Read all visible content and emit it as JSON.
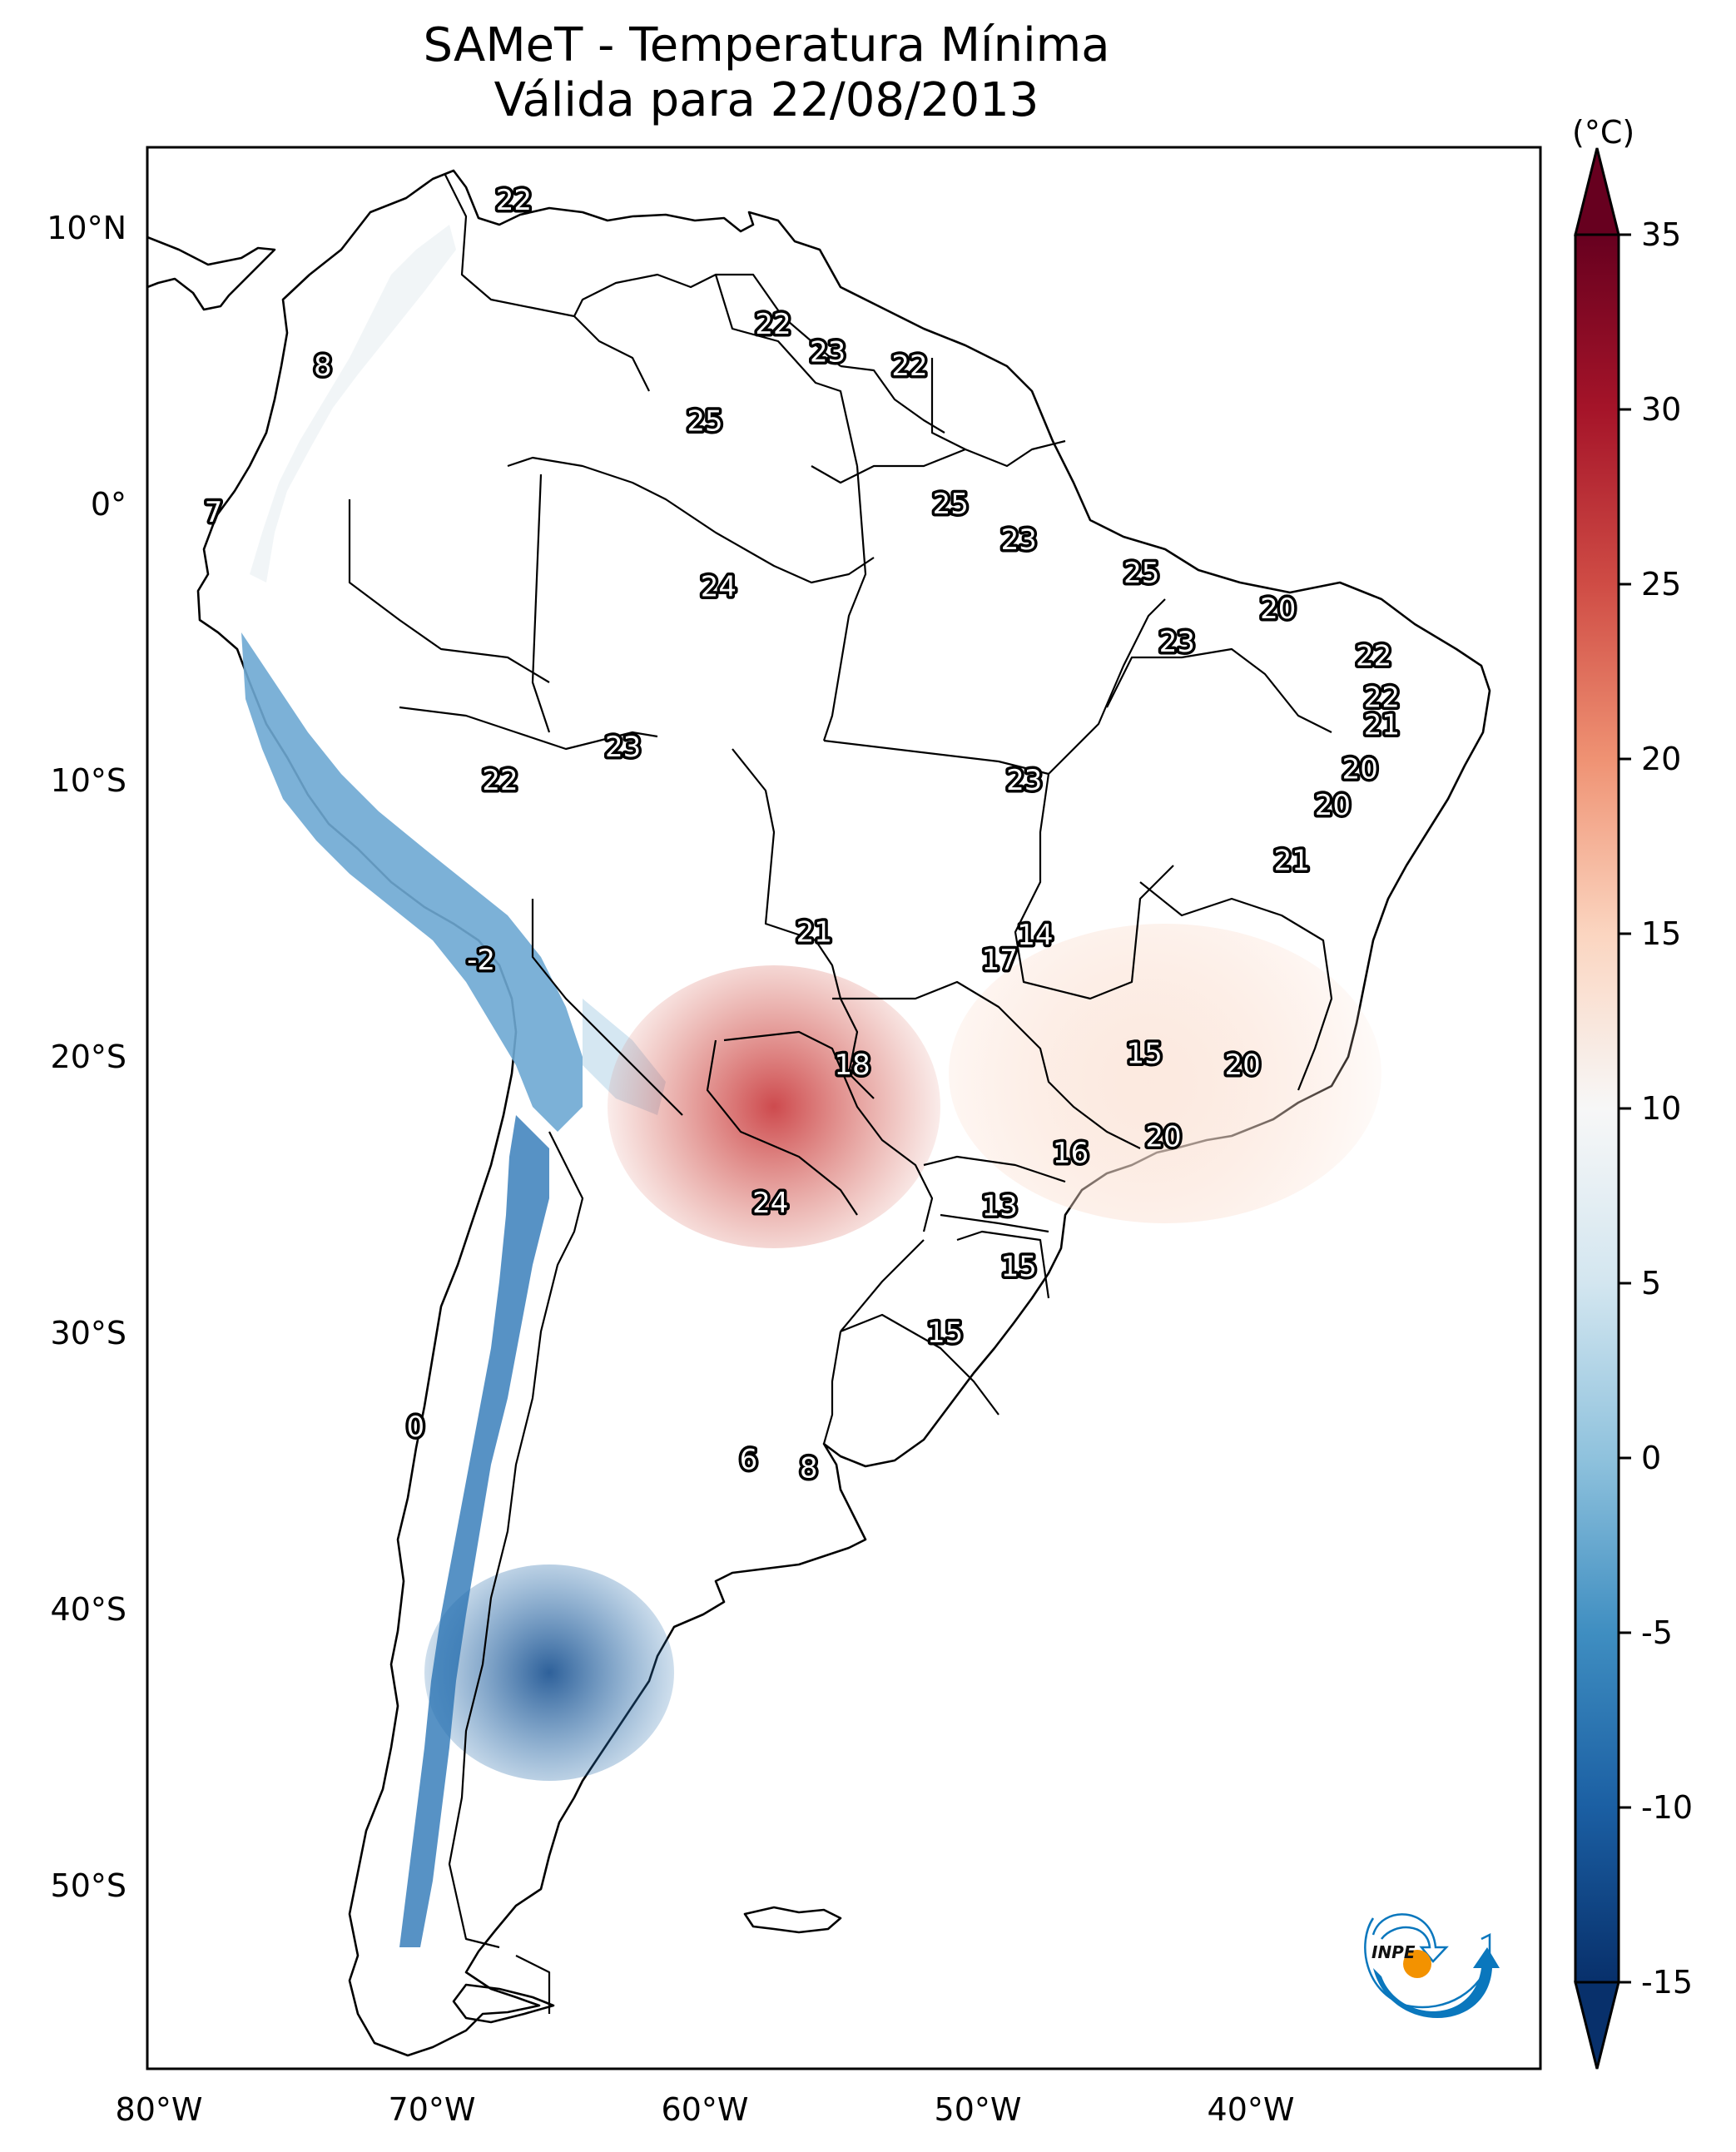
{
  "title": {
    "line1": "SAMeT - Temperatura Mínima",
    "line2": "Válida para 22/08/2013"
  },
  "colorbar": {
    "unit_label": "(°C)",
    "ticks": [
      "35",
      "30",
      "25",
      "20",
      "15",
      "10",
      "5",
      "0",
      "-5",
      "-10",
      "-15"
    ],
    "min": -15,
    "max": 35,
    "extend": "both",
    "colormap": "RdBu_r",
    "colors": {
      "c35": "#67001f",
      "c30": "#b2182b",
      "c25": "#d6604d",
      "c20": "#f4a582",
      "c15": "#fddbc7",
      "c10": "#f7f7f7",
      "c5": "#d1e5f0",
      "c0": "#92c5de",
      "cm5": "#4393c3",
      "cm10": "#2166ac",
      "cm15": "#053061"
    }
  },
  "axes": {
    "lat_labels": [
      "10°N",
      "0°",
      "10°S",
      "20°S",
      "30°S",
      "40°S",
      "50°S"
    ],
    "lon_labels": [
      "80°W",
      "70°W",
      "60°W",
      "50°W",
      "40°W"
    ]
  },
  "logo": {
    "text": "INPE",
    "blue": "#0a77bd",
    "orange": "#f39200"
  },
  "chart_data": {
    "type": "heatmap",
    "title": "SAMeT - Temperatura Mínima — Válida para 22/08/2013",
    "variable": "Minimum temperature",
    "units": "°C",
    "region": "South America",
    "lat_range": [
      -56,
      13
    ],
    "lon_range": [
      -83,
      -34
    ],
    "color_range": [
      -15,
      35
    ],
    "annotated_values": [
      {
        "lat": 11,
        "lon": -67,
        "value": 22
      },
      {
        "lat": 5,
        "lon": -74,
        "value": 8
      },
      {
        "lat": -0.3,
        "lon": -78,
        "value": 7
      },
      {
        "lat": 6.5,
        "lon": -57.5,
        "value": 22
      },
      {
        "lat": 5.5,
        "lon": -55.5,
        "value": 23
      },
      {
        "lat": 5,
        "lon": -52.5,
        "value": 22
      },
      {
        "lat": 3,
        "lon": -60,
        "value": 25
      },
      {
        "lat": 0,
        "lon": -51,
        "value": 25
      },
      {
        "lat": -1.3,
        "lon": -48.5,
        "value": 23
      },
      {
        "lat": -2.5,
        "lon": -44,
        "value": 25
      },
      {
        "lat": -3,
        "lon": -59.5,
        "value": 24
      },
      {
        "lat": -3.8,
        "lon": -39,
        "value": 20
      },
      {
        "lat": -5,
        "lon": -42.7,
        "value": 23
      },
      {
        "lat": -5.5,
        "lon": -35.5,
        "value": 22
      },
      {
        "lat": -7,
        "lon": -35.2,
        "value": 22
      },
      {
        "lat": -8,
        "lon": -35.2,
        "value": 21
      },
      {
        "lat": -8.8,
        "lon": -63,
        "value": 23
      },
      {
        "lat": -10,
        "lon": -67.5,
        "value": 22
      },
      {
        "lat": -10,
        "lon": -48.3,
        "value": 23
      },
      {
        "lat": -9.6,
        "lon": -36,
        "value": 20
      },
      {
        "lat": -10.9,
        "lon": -37,
        "value": 20
      },
      {
        "lat": -12.9,
        "lon": -38.5,
        "value": 21
      },
      {
        "lat": -15.5,
        "lon": -56,
        "value": 21
      },
      {
        "lat": -15.6,
        "lon": -47.9,
        "value": 14
      },
      {
        "lat": -16.5,
        "lon": -49.2,
        "value": 17
      },
      {
        "lat": -16.5,
        "lon": -68.2,
        "value": -2
      },
      {
        "lat": -20.3,
        "lon": -54.6,
        "value": 18
      },
      {
        "lat": -19.9,
        "lon": -43.9,
        "value": 15
      },
      {
        "lat": -20.3,
        "lon": -40.3,
        "value": 20
      },
      {
        "lat": -22.9,
        "lon": -43.2,
        "value": 20
      },
      {
        "lat": -23.5,
        "lon": -46.6,
        "value": 16
      },
      {
        "lat": -25.3,
        "lon": -57.6,
        "value": 24
      },
      {
        "lat": -25.4,
        "lon": -49.2,
        "value": 13
      },
      {
        "lat": -27.6,
        "lon": -48.5,
        "value": 15
      },
      {
        "lat": -30,
        "lon": -51.2,
        "value": 15
      },
      {
        "lat": -33.4,
        "lon": -70.6,
        "value": 0
      },
      {
        "lat": -34.6,
        "lon": -58.4,
        "value": 6
      },
      {
        "lat": -34.9,
        "lon": -56.2,
        "value": 8
      }
    ]
  }
}
